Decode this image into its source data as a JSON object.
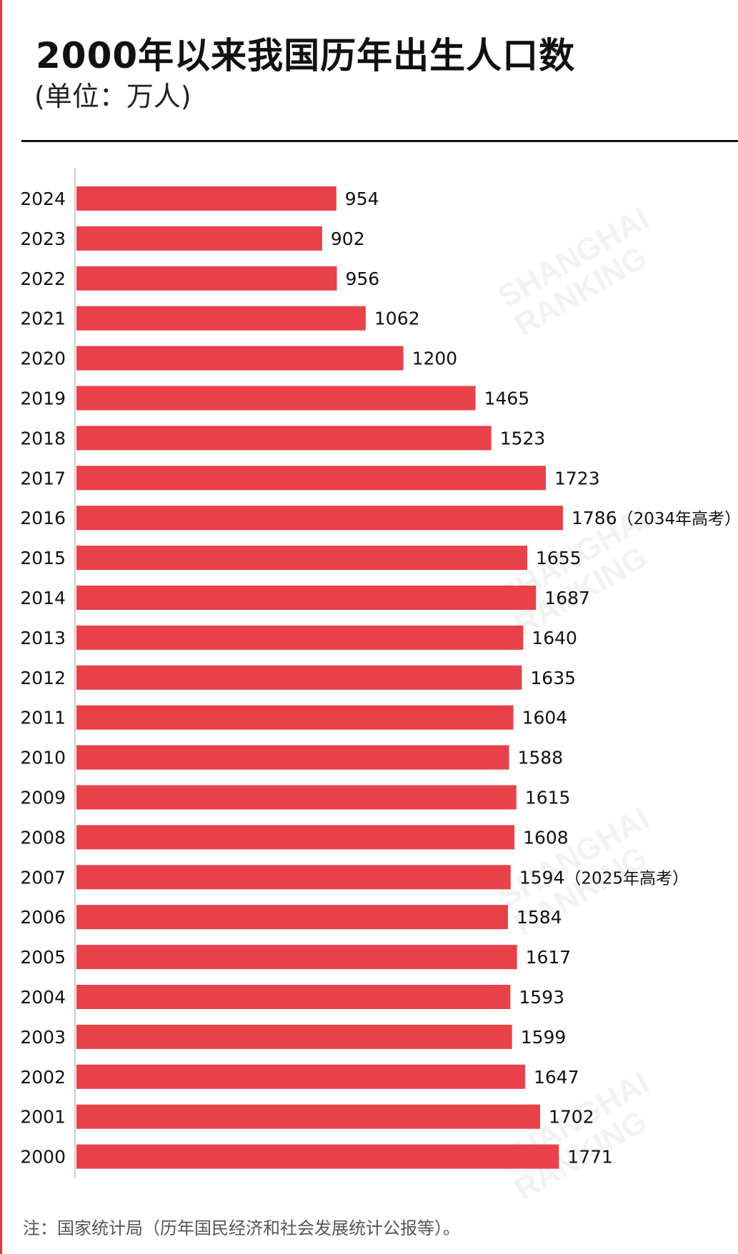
{
  "title": "2000年以来我国历年出生人口数",
  "subtitle": "(单位：万人)",
  "note": "注：国家统计局（历年国民经济和社会发展统计公报等）。",
  "watermark": "SHANGHAI RANKING",
  "colors": {
    "bar": "#e8414a",
    "axis": "#bbbbbb",
    "text": "#111111",
    "accent_edge": "#e53935"
  },
  "chart_data": {
    "type": "bar",
    "orientation": "horizontal",
    "title": "2000年以来我国历年出生人口数",
    "subtitle": "(单位：万人)",
    "categories": [
      "2024",
      "2023",
      "2022",
      "2021",
      "2020",
      "2019",
      "2018",
      "2017",
      "2016",
      "2015",
      "2014",
      "2013",
      "2012",
      "2011",
      "2010",
      "2009",
      "2008",
      "2007",
      "2006",
      "2005",
      "2004",
      "2003",
      "2002",
      "2001",
      "2000"
    ],
    "values": [
      954,
      902,
      956,
      1062,
      1200,
      1465,
      1523,
      1723,
      1786,
      1655,
      1687,
      1640,
      1635,
      1604,
      1588,
      1615,
      1608,
      1594,
      1584,
      1617,
      1593,
      1599,
      1647,
      1702,
      1771
    ],
    "annotations": [
      {
        "category": "2016",
        "text": "（2034年高考）"
      },
      {
        "category": "2007",
        "text": "（2025年高考）"
      }
    ],
    "xlim": [
      0,
      1786
    ],
    "grid": false,
    "legend": "none"
  }
}
